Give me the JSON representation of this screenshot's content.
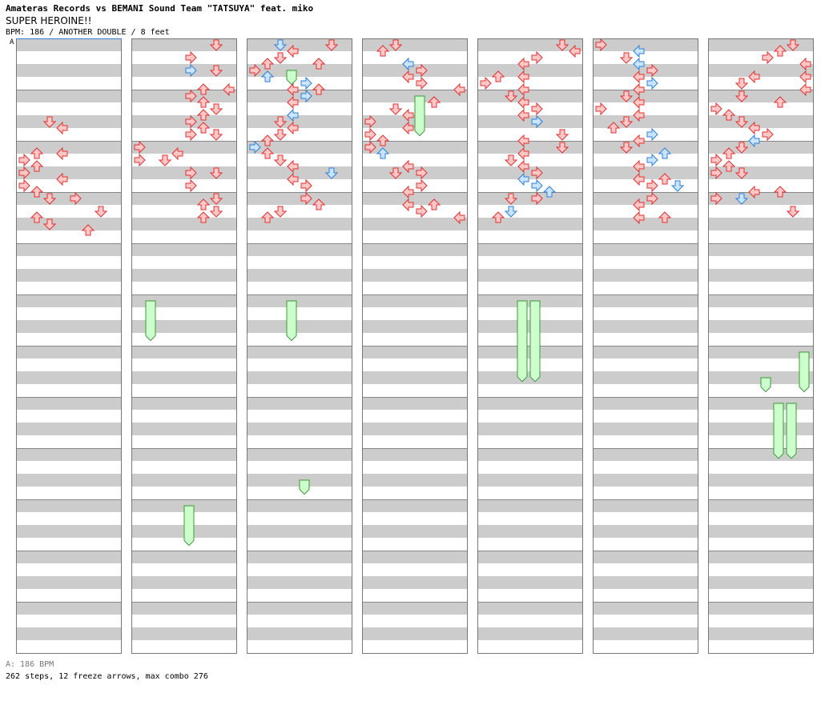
{
  "header": {
    "title_line": "Amateras Records vs BEMANI Sound Team \"TATSUYA\" feat. miko",
    "song_name": "SUPER HEROINE!!",
    "info_line": "BPM: 186 / ANOTHER DOUBLE / 8 feet",
    "bpm_marker": "A"
  },
  "footer": {
    "bpm_legend": "A: 186 BPM",
    "stats": "262 steps, 12 freeze arrows, max combo 276"
  },
  "colors": {
    "quarter_arrow_fill": "#ffc8c8",
    "quarter_arrow_stroke": "#e03030",
    "eighth_arrow_fill": "#c8e4ff",
    "eighth_arrow_stroke": "#2f7fd6",
    "freeze_fill": "#ccffcc",
    "freeze_stroke": "#3a9a3a",
    "band_gray": "#cccccc",
    "border": "#777777"
  },
  "chart_data": {
    "type": "step-chart",
    "columns": 7,
    "measures_per_column": 12,
    "total_measures": 84,
    "lanes": 8,
    "lane_order": [
      "P1 left",
      "P1 down",
      "P1 up",
      "P1 right",
      "P2 left",
      "P2 down",
      "P2 up",
      "P2 right"
    ],
    "beats_per_measure": 4,
    "arrows": [
      [
        6,
        2,
        0
      ],
      [
        6,
        3,
        0
      ],
      [
        8,
        1,
        0
      ],
      [
        8,
        3,
        0
      ],
      [
        9,
        0,
        0
      ],
      [
        9,
        1,
        0
      ],
      [
        10,
        0,
        0
      ],
      [
        10,
        3,
        0
      ],
      [
        11,
        0,
        0
      ],
      [
        11,
        1,
        0
      ],
      [
        12,
        2,
        0
      ],
      [
        12,
        4,
        0
      ],
      [
        13,
        1,
        0
      ],
      [
        13,
        6,
        0
      ],
      [
        14,
        2,
        0
      ],
      [
        14,
        5,
        0
      ],
      [
        0,
        6,
        0
      ],
      [
        1,
        4,
        0
      ],
      [
        2,
        6,
        0
      ],
      [
        2,
        4,
        1
      ],
      [
        3,
        5,
        0
      ],
      [
        3,
        7,
        0
      ],
      [
        4,
        4,
        0
      ],
      [
        4,
        5,
        0
      ],
      [
        5,
        5,
        0
      ],
      [
        5,
        6,
        0
      ],
      [
        6,
        4,
        0
      ],
      [
        6,
        5,
        0
      ],
      [
        7,
        4,
        0
      ],
      [
        7,
        6,
        0
      ],
      [
        8,
        0,
        0
      ],
      [
        8,
        3,
        0
      ],
      [
        9,
        0,
        0
      ],
      [
        9,
        2,
        0
      ],
      [
        10,
        4,
        0
      ],
      [
        10,
        6,
        0
      ],
      [
        11,
        4,
        0
      ],
      [
        12,
        5,
        0
      ],
      [
        12,
        6,
        0
      ],
      [
        13,
        5,
        0
      ],
      [
        13,
        6,
        0
      ],
      [
        0,
        6,
        0
      ],
      [
        0,
        3,
        0
      ],
      [
        0,
        2,
        1
      ],
      [
        1,
        5,
        0
      ],
      [
        1,
        5,
        0
      ],
      [
        1,
        2,
        1
      ],
      [
        1,
        2,
        0
      ],
      [
        1,
        1,
        0
      ],
      [
        2,
        1,
        0
      ],
      [
        2,
        0,
        0
      ],
      [
        2,
        1,
        1
      ],
      [
        3,
        3,
        0
      ],
      [
        3,
        3,
        0
      ],
      [
        3,
        4,
        1
      ],
      [
        3,
        5,
        0
      ],
      [
        4,
        3,
        0
      ],
      [
        4,
        4,
        0
      ],
      [
        4,
        4,
        1
      ],
      [
        5,
        3,
        0
      ],
      [
        5,
        3,
        1
      ],
      [
        6,
        3,
        0
      ],
      [
        6,
        2,
        0
      ],
      [
        7,
        2,
        0
      ],
      [
        7,
        1,
        0
      ],
      [
        8,
        1,
        0
      ],
      [
        8,
        0,
        1
      ],
      [
        9,
        2,
        0
      ],
      [
        9,
        3,
        0
      ],
      [
        10,
        3,
        0
      ],
      [
        10,
        6,
        1
      ],
      [
        11,
        4,
        0
      ],
      [
        11,
        4,
        0
      ],
      [
        12,
        4,
        0
      ],
      [
        12,
        5,
        0
      ],
      [
        13,
        1,
        0
      ],
      [
        13,
        2,
        0
      ],
      [
        0,
        2,
        0
      ],
      [
        0,
        1,
        0
      ],
      [
        1,
        3,
        0
      ],
      [
        1,
        3,
        1
      ],
      [
        2,
        4,
        0
      ],
      [
        2,
        3,
        0
      ],
      [
        3,
        4,
        0
      ],
      [
        3,
        7,
        0
      ],
      [
        4,
        5,
        0
      ],
      [
        4,
        5,
        0
      ],
      [
        5,
        2,
        0
      ],
      [
        5,
        3,
        0
      ],
      [
        6,
        0,
        0
      ],
      [
        6,
        3,
        0
      ],
      [
        7,
        0,
        0
      ],
      [
        7,
        1,
        0
      ],
      [
        8,
        0,
        0
      ],
      [
        8,
        1,
        1
      ],
      [
        9,
        3,
        0
      ],
      [
        9,
        3,
        0
      ],
      [
        10,
        2,
        0
      ],
      [
        10,
        4,
        0
      ],
      [
        11,
        3,
        0
      ],
      [
        11,
        4,
        0
      ],
      [
        12,
        3,
        0
      ],
      [
        12,
        5,
        0
      ],
      [
        13,
        7,
        0
      ],
      [
        13,
        4,
        0
      ],
      [
        0,
        7,
        0
      ],
      [
        0,
        6,
        0
      ],
      [
        1,
        4,
        0
      ],
      [
        1,
        3,
        0
      ],
      [
        2,
        1,
        0
      ],
      [
        2,
        3,
        0
      ],
      [
        3,
        0,
        0
      ],
      [
        3,
        3,
        0
      ],
      [
        4,
        2,
        0
      ],
      [
        4,
        3,
        0
      ],
      [
        5,
        3,
        0
      ],
      [
        5,
        4,
        0
      ],
      [
        6,
        4,
        1
      ],
      [
        6,
        4,
        1
      ],
      [
        7,
        3,
        0
      ],
      [
        7,
        6,
        0
      ],
      [
        8,
        3,
        0
      ],
      [
        8,
        6,
        0
      ],
      [
        9,
        2,
        0
      ],
      [
        9,
        3,
        0
      ],
      [
        10,
        3,
        1
      ],
      [
        10,
        4,
        0
      ],
      [
        11,
        4,
        1
      ],
      [
        11,
        5,
        1
      ],
      [
        12,
        4,
        0
      ],
      [
        12,
        2,
        0
      ],
      [
        13,
        1,
        0
      ],
      [
        13,
        2,
        1
      ],
      [
        0,
        0,
        0
      ],
      [
        0,
        3,
        1
      ],
      [
        1,
        3,
        1
      ],
      [
        1,
        2,
        0
      ],
      [
        2,
        4,
        0
      ],
      [
        2,
        3,
        0
      ],
      [
        3,
        4,
        1
      ],
      [
        3,
        3,
        0
      ],
      [
        4,
        2,
        0
      ],
      [
        4,
        3,
        0
      ],
      [
        5,
        0,
        0
      ],
      [
        5,
        3,
        0
      ],
      [
        6,
        2,
        0
      ],
      [
        6,
        1,
        0
      ],
      [
        7,
        3,
        0
      ],
      [
        7,
        4,
        1
      ],
      [
        8,
        2,
        0
      ],
      [
        8,
        5,
        1
      ],
      [
        9,
        4,
        1
      ],
      [
        9,
        3,
        0
      ],
      [
        10,
        5,
        0
      ],
      [
        10,
        3,
        0
      ],
      [
        11,
        6,
        1
      ],
      [
        11,
        4,
        0
      ],
      [
        12,
        4,
        0
      ],
      [
        12,
        3,
        0
      ],
      [
        13,
        3,
        0
      ],
      [
        13,
        5,
        0
      ],
      [
        0,
        5,
        0
      ],
      [
        0,
        6,
        0
      ],
      [
        1,
        7,
        0
      ],
      [
        1,
        4,
        0
      ],
      [
        2,
        3,
        0
      ],
      [
        2,
        7,
        0
      ],
      [
        3,
        2,
        0
      ],
      [
        3,
        7,
        0
      ],
      [
        4,
        5,
        0
      ],
      [
        4,
        2,
        0
      ],
      [
        5,
        1,
        0
      ],
      [
        5,
        0,
        0
      ],
      [
        6,
        2,
        0
      ],
      [
        6,
        3,
        0
      ],
      [
        7,
        3,
        1
      ],
      [
        7,
        4,
        0
      ],
      [
        8,
        1,
        0
      ],
      [
        8,
        2,
        0
      ],
      [
        9,
        0,
        0
      ],
      [
        9,
        1,
        0
      ],
      [
        10,
        0,
        0
      ],
      [
        10,
        2,
        0
      ],
      [
        11,
        5,
        0
      ],
      [
        11,
        3,
        0
      ],
      [
        12,
        2,
        1
      ],
      [
        12,
        0,
        0
      ],
      [
        13,
        6,
        0
      ],
      [
        13,
        6,
        0
      ]
    ],
    "freezes": [
      {
        "col": 1,
        "lane": 1,
        "start": 5.0,
        "end": 5.9
      },
      {
        "col": 1,
        "lane": 4,
        "start": 9.0,
        "end": 9.9
      },
      {
        "col": 2,
        "lane": 3,
        "start": 0.5,
        "end": 0.9
      },
      {
        "col": 2,
        "lane": 3,
        "start": 5.0,
        "end": 5.9
      },
      {
        "col": 2,
        "lane": 4,
        "start": 8.5,
        "end": 8.9
      },
      {
        "col": 3,
        "lane": 4,
        "start": 1.0,
        "end": 1.9
      },
      {
        "col": 4,
        "lane": 3,
        "start": 5.0,
        "end": 6.7
      },
      {
        "col": 4,
        "lane": 4,
        "start": 5.0,
        "end": 6.7
      },
      {
        "col": 6,
        "lane": 7,
        "start": 6.0,
        "end": 6.9
      },
      {
        "col": 6,
        "lane": 4,
        "start": 6.5,
        "end": 6.9
      },
      {
        "col": 6,
        "lane": 5,
        "start": 7.0,
        "end": 8.2
      },
      {
        "col": 6,
        "lane": 6,
        "start": 7.0,
        "end": 8.2
      }
    ]
  }
}
